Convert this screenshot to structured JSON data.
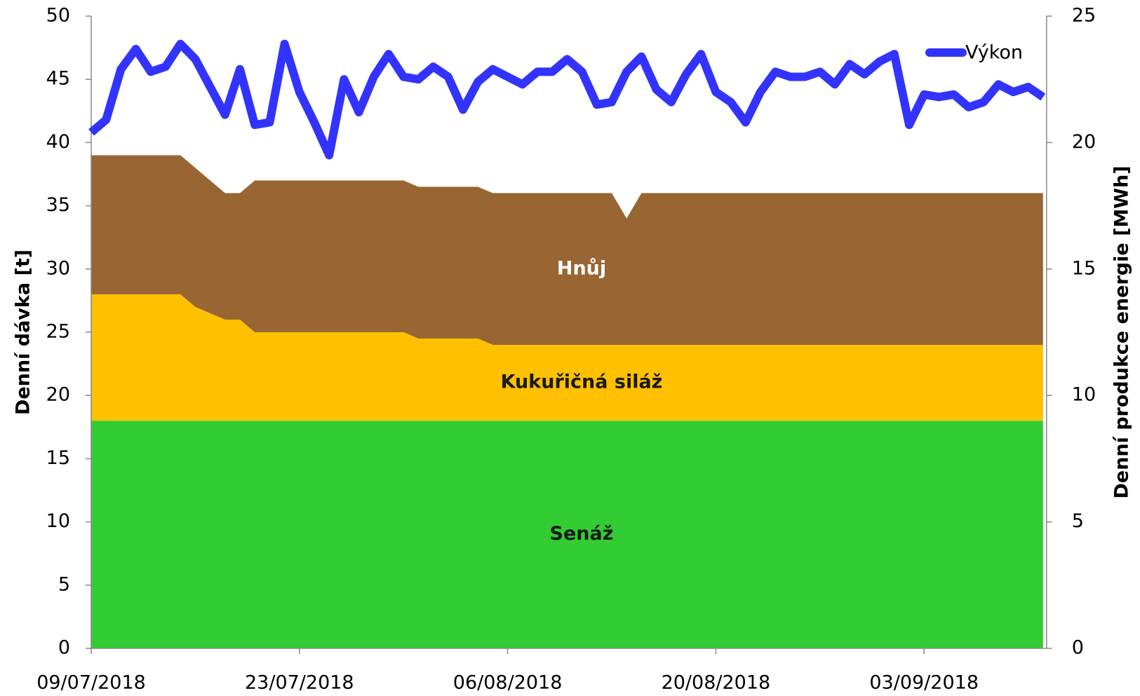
{
  "chart_data": {
    "type": "area",
    "y_label": "Denní dávka [t]",
    "y2_label": "Denní produkce energie [MWh]",
    "categories": [
      "09/07/2018",
      null,
      null,
      null,
      null,
      null,
      null,
      null,
      null,
      null,
      null,
      null,
      null,
      null,
      "23/07/2018",
      null,
      null,
      null,
      null,
      null,
      null,
      null,
      null,
      null,
      null,
      null,
      null,
      null,
      "06/08/2018",
      null,
      null,
      null,
      null,
      null,
      null,
      null,
      null,
      null,
      null,
      null,
      null,
      null,
      "20/08/2018",
      null,
      null,
      null,
      null,
      null,
      null,
      null,
      null,
      null,
      null,
      null,
      null,
      null,
      "03/09/2018",
      null,
      null,
      null,
      null,
      null,
      null,
      null,
      null
    ],
    "ylim": [
      0,
      50
    ],
    "yticks": [
      0,
      5,
      10,
      15,
      20,
      25,
      30,
      35,
      40,
      45,
      50
    ],
    "y2lim": [
      0,
      25
    ],
    "y2ticks": [
      0,
      5,
      10,
      15,
      20,
      25
    ],
    "legend": "upper right",
    "series": [
      {
        "name": "Senáž",
        "color": "#33cc33",
        "stacked": true,
        "values": [
          18,
          18,
          18,
          18,
          18,
          18,
          18,
          18,
          18,
          18,
          18,
          18,
          18,
          18,
          18,
          18,
          18,
          18,
          18,
          18,
          18,
          18,
          18,
          18,
          18,
          18,
          18,
          18,
          18,
          18,
          18,
          18,
          18,
          18,
          18,
          18,
          18,
          18,
          18,
          18,
          18,
          18,
          18,
          18,
          18,
          18,
          18,
          18,
          18,
          18,
          18,
          18,
          18,
          18,
          18,
          18,
          18,
          18,
          18,
          18,
          18,
          18,
          18,
          18,
          18
        ]
      },
      {
        "name": "Kukuřičná siláž",
        "color": "#ffc000",
        "stacked": true,
        "values": [
          10,
          10,
          10,
          10,
          10,
          10,
          10,
          9,
          8.5,
          8,
          8,
          7,
          7,
          7,
          7,
          7,
          7,
          7,
          7,
          7,
          7,
          7,
          6.5,
          6.5,
          6.5,
          6.5,
          6.5,
          6,
          6,
          6,
          6,
          6,
          6,
          6,
          6,
          6,
          6,
          6,
          6,
          6,
          6,
          6,
          6,
          6,
          6,
          6,
          6,
          6,
          6,
          6,
          6,
          6,
          6,
          6,
          6,
          6,
          6,
          6,
          6,
          6,
          6,
          6,
          6,
          6,
          6
        ]
      },
      {
        "name": "Hnůj",
        "color": "#996633",
        "stacked": true,
        "values": [
          11,
          11,
          11,
          11,
          11,
          11,
          11,
          11,
          10.5,
          10,
          10,
          12,
          12,
          12,
          12,
          12,
          12,
          12,
          12,
          12,
          12,
          12,
          12,
          12,
          12,
          12,
          12,
          12,
          12,
          12,
          12,
          12,
          12,
          12,
          12,
          12,
          10,
          12,
          12,
          12,
          12,
          12,
          12,
          12,
          12,
          12,
          12,
          12,
          12,
          12,
          12,
          12,
          12,
          12,
          12,
          12,
          12,
          12,
          12,
          12,
          12,
          12,
          12,
          12,
          12
        ]
      },
      {
        "name": "Výkon",
        "color": "#3333ff",
        "type": "line",
        "axis": "y2",
        "values": [
          20.4,
          20.9,
          22.9,
          23.7,
          22.8,
          23.0,
          23.9,
          23.3,
          22.2,
          21.1,
          22.9,
          20.7,
          20.8,
          23.9,
          22.0,
          20.8,
          19.5,
          22.5,
          21.2,
          22.6,
          23.5,
          22.6,
          22.5,
          23.0,
          22.6,
          21.3,
          22.4,
          22.9,
          22.6,
          22.3,
          22.8,
          22.8,
          23.3,
          22.8,
          21.5,
          21.6,
          22.8,
          23.4,
          22.1,
          21.6,
          22.7,
          23.5,
          22.0,
          21.6,
          20.8,
          22.0,
          22.8,
          22.6,
          22.6,
          22.8,
          22.3,
          23.1,
          22.7,
          23.2,
          23.5,
          20.7,
          21.9,
          21.8,
          21.9,
          21.4,
          21.6,
          22.3,
          22.0,
          22.2,
          21.8
        ]
      }
    ]
  }
}
